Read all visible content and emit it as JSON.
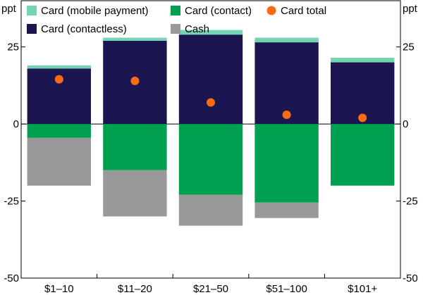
{
  "chart_data": {
    "type": "bar",
    "stacked": true,
    "unit_left": "ppt",
    "unit_right": "ppt",
    "categories": [
      "$1–10",
      "$11–20",
      "$21–50",
      "$51–100",
      "$101+"
    ],
    "ylim": [
      -50,
      40
    ],
    "yticks": [
      25,
      0,
      -25,
      -50
    ],
    "grid": false,
    "legend_position": "top-left",
    "series": [
      {
        "name": "Card (contactless)",
        "color": "#1b164f",
        "kind": "bar",
        "values": [
          18,
          27,
          29,
          26.5,
          20
        ]
      },
      {
        "name": "Card (mobile payment)",
        "color": "#73d3b3",
        "kind": "bar",
        "values": [
          1,
          1,
          1.5,
          1.5,
          1.5
        ]
      },
      {
        "name": "Card (contact)",
        "color": "#00a050",
        "kind": "bar",
        "values": [
          -4.5,
          -15,
          -23,
          -25.5,
          -20
        ]
      },
      {
        "name": "Cash",
        "color": "#999999",
        "kind": "bar",
        "values": [
          -15.5,
          -15,
          -10,
          -5,
          0
        ]
      },
      {
        "name": "Card total",
        "color": "#ff6a13",
        "kind": "dot",
        "values": [
          14.5,
          14,
          7,
          3,
          2
        ]
      }
    ],
    "legend": [
      [
        "Card (mobile payment)",
        "Card (contact)",
        "Card total"
      ],
      [
        "Card (contactless)",
        "Cash"
      ]
    ]
  }
}
